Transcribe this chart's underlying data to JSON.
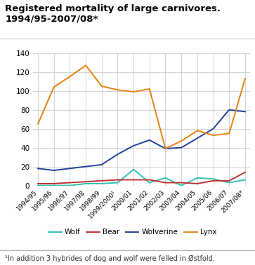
{
  "title_line1": "Registered mortality of large carnivores.",
  "title_line2": "1994/95-2007/08*",
  "footnote": "¹In addition 3 hybrides of dog and wolf were felled in Østfold.",
  "x_labels": [
    "1994/95",
    "1995/96",
    "1996/97",
    "1997/98",
    "1998/99",
    "1999/2000¹",
    "2000/01",
    "2001/02",
    "2002/03",
    "2003/04",
    "2004/05",
    "2005/06",
    "2006/07",
    "2007/08*"
  ],
  "wolf": [
    0,
    0,
    0,
    2,
    2,
    3,
    17,
    3,
    8,
    0,
    8,
    7,
    3,
    6
  ],
  "bear": [
    2,
    2,
    3,
    4,
    5,
    6,
    6,
    6,
    3,
    3,
    2,
    5,
    5,
    14
  ],
  "wolverine": [
    18,
    16,
    18,
    20,
    22,
    33,
    42,
    48,
    39,
    40,
    50,
    60,
    80,
    78
  ],
  "lynx": [
    65,
    104,
    115,
    127,
    105,
    101,
    99,
    102,
    39,
    47,
    58,
    53,
    55,
    113
  ],
  "wolf_color": "#30c0b0",
  "bear_color": "#c03030",
  "wolverine_color": "#2040a0",
  "lynx_color": "#e88010",
  "ylim": [
    0,
    140
  ],
  "yticks": [
    0,
    20,
    40,
    60,
    80,
    100,
    120,
    140
  ],
  "bg_color": "#ffffff",
  "grid_color": "#cccccc"
}
